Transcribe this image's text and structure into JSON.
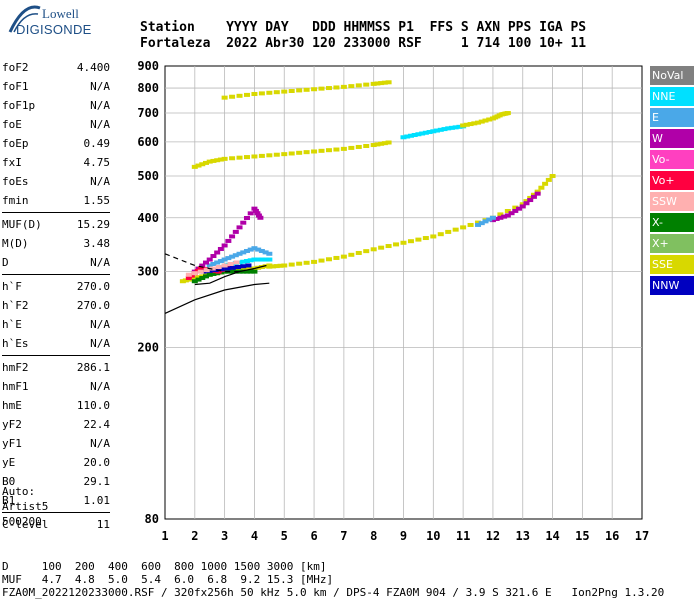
{
  "logo": {
    "line1": "Lowell",
    "line2": "DIGISONDE"
  },
  "header": {
    "line1": "Station    YYYY DAY   DDD HHMMSS P1  FFS S AXN PPS IGA PS",
    "line2": "Fortaleza  2022 Abr30 120 233000 RSF     1 714 100 10+ 11"
  },
  "params": {
    "group1": [
      {
        "label": "foF2",
        "value": "4.400"
      },
      {
        "label": "foF1",
        "value": "N/A"
      },
      {
        "label": "foF1p",
        "value": "N/A"
      },
      {
        "label": "foE",
        "value": "N/A"
      },
      {
        "label": "foEp",
        "value": "0.49"
      },
      {
        "label": "fxI",
        "value": "4.75"
      },
      {
        "label": "foEs",
        "value": "N/A"
      },
      {
        "label": "fmin",
        "value": "1.55"
      }
    ],
    "group2": [
      {
        "label": "MUF(D)",
        "value": "15.29"
      },
      {
        "label": "M(D)",
        "value": "3.48"
      },
      {
        "label": "D",
        "value": "N/A"
      }
    ],
    "group3": [
      {
        "label": "h`F",
        "value": "270.0"
      },
      {
        "label": "h`F2",
        "value": "270.0"
      },
      {
        "label": "h`E",
        "value": "N/A"
      },
      {
        "label": "h`Es",
        "value": "N/A"
      }
    ],
    "group4": [
      {
        "label": "hmF2",
        "value": "286.1"
      },
      {
        "label": "hmF1",
        "value": "N/A"
      },
      {
        "label": "hmE",
        "value": "110.0"
      },
      {
        "label": "yF2",
        "value": "22.4"
      },
      {
        "label": "yF1",
        "value": "N/A"
      },
      {
        "label": "yE",
        "value": "20.0"
      },
      {
        "label": "B0",
        "value": "29.1"
      },
      {
        "label": "B1",
        "value": "1.01"
      }
    ],
    "group5": [
      {
        "label": "C-level",
        "value": "11"
      }
    ]
  },
  "auto": {
    "line1": "Auto:",
    "line2": "Artist5",
    "line3": "500200"
  },
  "legend": [
    {
      "label": "NoVal",
      "color": "#808080"
    },
    {
      "label": "NNE",
      "color": "#00e0ff"
    },
    {
      "label": "E",
      "color": "#4aa8e8"
    },
    {
      "label": "W",
      "color": "#b000a8"
    },
    {
      "label": "Vo-",
      "color": "#ff40c0"
    },
    {
      "label": "Vo+",
      "color": "#ff0040"
    },
    {
      "label": "SSW",
      "color": "#ffb0b0"
    },
    {
      "label": "X-",
      "color": "#008000"
    },
    {
      "label": "X+",
      "color": "#80c060"
    },
    {
      "label": "SSE",
      "color": "#d8d800"
    },
    {
      "label": "NNW",
      "color": "#0000c0"
    }
  ],
  "chart_data": {
    "type": "scatter",
    "xlim": [
      1,
      17
    ],
    "ylim": [
      80,
      900
    ],
    "y_scale": "log",
    "x_ticks": [
      1,
      2,
      3,
      4,
      5,
      6,
      7,
      8,
      9,
      10,
      11,
      12,
      13,
      14,
      15,
      16,
      17
    ],
    "y_ticks": [
      80,
      200,
      300,
      400,
      500,
      600,
      700,
      800,
      900
    ],
    "grid": true,
    "traces": [
      {
        "name": "SSE",
        "color": "#d8d800",
        "points": [
          [
            3.0,
            760
          ],
          [
            4.0,
            775
          ],
          [
            5.0,
            785
          ],
          [
            6.0,
            795
          ],
          [
            7.0,
            805
          ],
          [
            8.0,
            818
          ],
          [
            8.5,
            825
          ]
        ]
      },
      {
        "name": "SSE",
        "color": "#d8d800",
        "points": [
          [
            2.0,
            525
          ],
          [
            2.5,
            540
          ],
          [
            3.0,
            548
          ],
          [
            4.0,
            555
          ],
          [
            5.0,
            562
          ],
          [
            6.0,
            570
          ],
          [
            7.0,
            578
          ],
          [
            8.0,
            590
          ],
          [
            8.5,
            598
          ]
        ]
      },
      {
        "name": "NNE",
        "color": "#00e0ff",
        "points": [
          [
            9.0,
            615
          ],
          [
            9.5,
            625
          ],
          [
            10.0,
            635
          ],
          [
            10.5,
            645
          ],
          [
            11.0,
            652
          ]
        ]
      },
      {
        "name": "SSE",
        "color": "#d8d800",
        "points": [
          [
            11.0,
            655
          ],
          [
            11.5,
            665
          ],
          [
            12.0,
            680
          ],
          [
            12.3,
            695
          ],
          [
            12.5,
            700
          ]
        ]
      },
      {
        "name": "SSE",
        "color": "#d8d800",
        "points": [
          [
            4.5,
            308
          ],
          [
            5.0,
            310
          ],
          [
            6.0,
            316
          ],
          [
            7.0,
            325
          ],
          [
            8.0,
            338
          ],
          [
            9.0,
            350
          ],
          [
            10.0,
            362
          ],
          [
            11.0,
            380
          ],
          [
            12.0,
            400
          ],
          [
            13.0,
            430
          ],
          [
            13.5,
            460
          ],
          [
            14.0,
            500
          ]
        ]
      },
      {
        "name": "W",
        "color": "#b000a8",
        "points": [
          [
            12.0,
            395
          ],
          [
            12.5,
            405
          ],
          [
            13.0,
            425
          ],
          [
            13.5,
            455
          ]
        ]
      },
      {
        "name": "E",
        "color": "#4aa8e8",
        "points": [
          [
            11.5,
            385
          ],
          [
            12.0,
            400
          ]
        ]
      },
      {
        "name": "SSE",
        "color": "#d8d800",
        "points": [
          [
            1.6,
            285
          ],
          [
            2.0,
            290
          ],
          [
            2.5,
            295
          ],
          [
            3.0,
            300
          ],
          [
            3.5,
            305
          ],
          [
            4.0,
            305
          ],
          [
            4.5,
            310
          ]
        ]
      },
      {
        "name": "X-",
        "color": "#008000",
        "points": [
          [
            2.0,
            285
          ],
          [
            2.5,
            295
          ],
          [
            3.0,
            300
          ],
          [
            3.5,
            300
          ],
          [
            4.0,
            300
          ]
        ]
      },
      {
        "name": "E",
        "color": "#4aa8e8",
        "points": [
          [
            2.5,
            310
          ],
          [
            3.0,
            320
          ],
          [
            3.5,
            330
          ],
          [
            4.0,
            340
          ],
          [
            4.5,
            330
          ]
        ]
      },
      {
        "name": "NNE",
        "color": "#00e0ff",
        "points": [
          [
            3.0,
            310
          ],
          [
            3.5,
            315
          ],
          [
            4.0,
            320
          ],
          [
            4.5,
            320
          ]
        ]
      },
      {
        "name": "W",
        "color": "#b000a8",
        "points": [
          [
            2.0,
            300
          ],
          [
            2.5,
            320
          ],
          [
            3.0,
            345
          ],
          [
            3.5,
            380
          ],
          [
            4.0,
            420
          ],
          [
            4.2,
            400
          ]
        ]
      },
      {
        "name": "Vo+",
        "color": "#ff0040",
        "points": [
          [
            1.8,
            290
          ],
          [
            2.2,
            305
          ],
          [
            2.8,
            300
          ],
          [
            3.2,
            310
          ]
        ]
      },
      {
        "name": "NNW",
        "color": "#0000c0",
        "points": [
          [
            2.3,
            300
          ],
          [
            3.1,
            305
          ],
          [
            3.8,
            310
          ]
        ]
      },
      {
        "name": "SSW",
        "color": "#ffb0b0",
        "points": [
          [
            1.8,
            295
          ],
          [
            2.6,
            305
          ],
          [
            3.4,
            315
          ]
        ]
      }
    ],
    "profile_lines": [
      {
        "name": "lower-bound",
        "points": [
          [
            1.0,
            240
          ],
          [
            2.0,
            258
          ],
          [
            3.0,
            272
          ],
          [
            4.0,
            280
          ],
          [
            4.5,
            282
          ]
        ]
      },
      {
        "name": "dashed-trace",
        "dashed": true,
        "points": [
          [
            1.0,
            330
          ],
          [
            2.0,
            310
          ],
          [
            3.0,
            300
          ],
          [
            3.5,
            300
          ]
        ]
      },
      {
        "name": "fit-trace",
        "points": [
          [
            2.0,
            280
          ],
          [
            2.5,
            282
          ],
          [
            3.0,
            292
          ],
          [
            3.5,
            300
          ],
          [
            4.0,
            305
          ],
          [
            4.4,
            310
          ]
        ]
      }
    ]
  },
  "footer": {
    "line1": "D     100  200  400  600  800 1000 1500 3000 [km]",
    "line2": "MUF   4.7  4.8  5.0  5.4  6.0  6.8  9.2 15.3 [MHz]",
    "line3": "FZA0M_2022120233000.RSF / 320fx256h 50 kHz 5.0 km / DPS-4 FZA0M 904 / 3.9 S 321.6 E   Ion2Png 1.3.20"
  }
}
